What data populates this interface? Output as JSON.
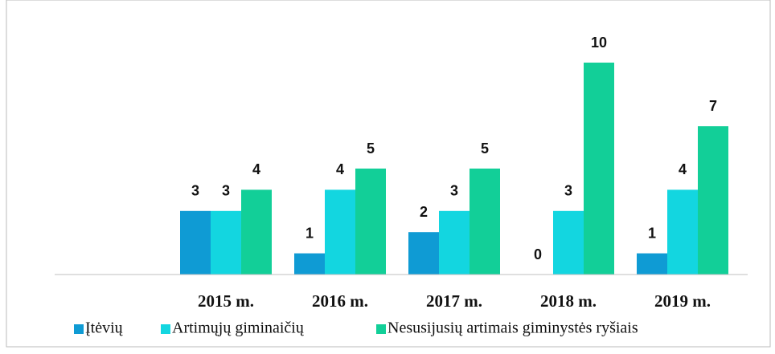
{
  "chart_data": {
    "type": "bar",
    "categories": [
      null,
      "2015 m.",
      "2016 m.",
      "2017 m.",
      "2018 m.",
      "2019 m."
    ],
    "series": [
      {
        "name": "Įtėvių",
        "color": "#0f9bd4",
        "values": [
          null,
          3,
          1,
          2,
          0,
          1
        ]
      },
      {
        "name": "Artimųjų giminaičių",
        "color": "#13d6e0",
        "values": [
          null,
          3,
          4,
          3,
          3,
          4
        ]
      },
      {
        "name": "Nesusijusių artimais giminystės ryšiais",
        "color": "#12cf98",
        "values": [
          null,
          4,
          5,
          5,
          10,
          7
        ]
      }
    ],
    "legend": "bottom"
  }
}
